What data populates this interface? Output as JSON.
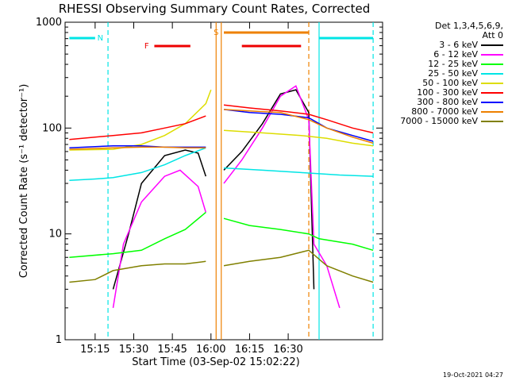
{
  "chart_data": {
    "type": "line",
    "title": "RHESSI Observing Summary Count Rates, Corrected",
    "xlabel": "Start Time (03-Sep-02 15:02:22)",
    "ylabel": "Corrected Count Rate (s⁻¹ detector⁻¹)",
    "yscale": "log",
    "ylim": [
      1,
      1000
    ],
    "xlim_minutes": [
      15.0333,
      16.6667
    ],
    "x_ticks": [
      "15:15",
      "15:30",
      "15:45",
      "16:00",
      "16:15",
      "16:30"
    ],
    "y_ticks": [
      "1",
      "10",
      "100",
      "1000"
    ],
    "legend": {
      "header": [
        "Det 1,3,4,5,6,9,",
        "Att 0"
      ],
      "placement": "right"
    },
    "series": [
      {
        "name": "3 - 6 keV",
        "color": "#000000",
        "points": [
          [
            15.22,
            3
          ],
          [
            15.28,
            10
          ],
          [
            15.33,
            30
          ],
          [
            15.42,
            55
          ],
          [
            15.5,
            62
          ],
          [
            15.55,
            58
          ],
          [
            15.58,
            35
          ],
          [
            16.05,
            40
          ],
          [
            16.12,
            60
          ],
          [
            16.2,
            110
          ],
          [
            16.27,
            210
          ],
          [
            16.33,
            230
          ],
          [
            16.38,
            140
          ],
          [
            16.4,
            3
          ]
        ]
      },
      {
        "name": "6 - 12 keV",
        "color": "#ff00ff",
        "points": [
          [
            15.22,
            2
          ],
          [
            15.26,
            8
          ],
          [
            15.33,
            20
          ],
          [
            15.42,
            35
          ],
          [
            15.48,
            40
          ],
          [
            15.55,
            28
          ],
          [
            15.58,
            16
          ],
          [
            16.05,
            30
          ],
          [
            16.12,
            50
          ],
          [
            16.2,
            100
          ],
          [
            16.27,
            200
          ],
          [
            16.33,
            250
          ],
          [
            16.38,
            120
          ],
          [
            16.4,
            8
          ],
          [
            16.45,
            5
          ],
          [
            16.5,
            2
          ]
        ]
      },
      {
        "name": "12 - 25 keV",
        "color": "#00ff00",
        "points": [
          [
            15.05,
            6
          ],
          [
            15.22,
            6.5
          ],
          [
            15.33,
            7
          ],
          [
            15.42,
            9
          ],
          [
            15.5,
            11
          ],
          [
            15.58,
            16
          ],
          [
            16.05,
            14
          ],
          [
            16.15,
            12
          ],
          [
            16.27,
            11
          ],
          [
            16.38,
            10
          ],
          [
            16.42,
            9
          ],
          [
            16.55,
            8
          ],
          [
            16.63,
            7
          ]
        ]
      },
      {
        "name": "25 - 50 keV",
        "color": "#00e5e5",
        "points": [
          [
            15.05,
            32
          ],
          [
            15.15,
            33
          ],
          [
            15.22,
            34
          ],
          [
            15.33,
            38
          ],
          [
            15.42,
            45
          ],
          [
            15.5,
            55
          ],
          [
            15.58,
            65
          ],
          [
            16.05,
            42
          ],
          [
            16.2,
            40
          ],
          [
            16.35,
            38
          ],
          [
            16.5,
            36
          ],
          [
            16.63,
            35
          ]
        ]
      },
      {
        "name": "50 - 100 keV",
        "color": "#dddd00",
        "points": [
          [
            15.05,
            62
          ],
          [
            15.22,
            63
          ],
          [
            15.33,
            70
          ],
          [
            15.42,
            85
          ],
          [
            15.5,
            110
          ],
          [
            15.58,
            170
          ],
          [
            15.6,
            230
          ],
          [
            16.05,
            95
          ],
          [
            16.2,
            90
          ],
          [
            16.35,
            85
          ],
          [
            16.45,
            80
          ],
          [
            16.55,
            72
          ],
          [
            16.63,
            68
          ]
        ]
      },
      {
        "name": "100 - 300 keV",
        "color": "#ff0000",
        "points": [
          [
            15.05,
            78
          ],
          [
            15.22,
            85
          ],
          [
            15.33,
            90
          ],
          [
            15.42,
            100
          ],
          [
            15.5,
            110
          ],
          [
            15.58,
            130
          ],
          [
            16.05,
            165
          ],
          [
            16.15,
            155
          ],
          [
            16.27,
            145
          ],
          [
            16.38,
            135
          ],
          [
            16.45,
            120
          ],
          [
            16.55,
            100
          ],
          [
            16.63,
            90
          ]
        ]
      },
      {
        "name": "300 - 800 keV",
        "color": "#0000ff",
        "points": [
          [
            15.05,
            65
          ],
          [
            15.22,
            68
          ],
          [
            15.33,
            68
          ],
          [
            15.42,
            66
          ],
          [
            15.5,
            66
          ],
          [
            15.58,
            66
          ],
          [
            16.05,
            150
          ],
          [
            16.15,
            140
          ],
          [
            16.27,
            135
          ],
          [
            16.38,
            125
          ],
          [
            16.45,
            100
          ],
          [
            16.55,
            85
          ],
          [
            16.63,
            75
          ]
        ]
      },
      {
        "name": "800 - 7000 keV",
        "color": "#ee8000",
        "points": [
          [
            15.05,
            63
          ],
          [
            15.22,
            65
          ],
          [
            15.33,
            66
          ],
          [
            15.42,
            66
          ],
          [
            15.5,
            65
          ],
          [
            15.58,
            65
          ],
          [
            16.05,
            150
          ],
          [
            16.15,
            145
          ],
          [
            16.27,
            140
          ],
          [
            16.38,
            120
          ],
          [
            16.45,
            100
          ],
          [
            16.55,
            82
          ],
          [
            16.63,
            72
          ]
        ]
      },
      {
        "name": "7000 - 15000 keV",
        "color": "#808000",
        "points": [
          [
            15.05,
            3.5
          ],
          [
            15.15,
            3.7
          ],
          [
            15.22,
            4.5
          ],
          [
            15.33,
            5
          ],
          [
            15.42,
            5.2
          ],
          [
            15.5,
            5.2
          ],
          [
            15.58,
            5.5
          ],
          [
            16.05,
            5
          ],
          [
            16.15,
            5.5
          ],
          [
            16.27,
            6
          ],
          [
            16.38,
            7
          ],
          [
            16.45,
            5
          ],
          [
            16.55,
            4
          ],
          [
            16.63,
            3.5
          ]
        ]
      }
    ],
    "flag_bars": [
      {
        "label": "",
        "color": "#00e5e5",
        "from": 15.05,
        "to": 15.15
      },
      {
        "label": "",
        "color": "#00e5e5",
        "from": 16.42,
        "to": 16.63
      },
      {
        "label": "",
        "color": "#ee0000",
        "from": 15.38,
        "to": 15.52
      },
      {
        "label": "",
        "color": "#ee0000",
        "from": 16.12,
        "to": 16.35
      },
      {
        "label": "",
        "color": "#ee8000",
        "from": 15.65,
        "to": 15.98
      }
    ],
    "flag_labels": [
      {
        "text": "N",
        "color": "#00e5e5",
        "at": 15.17
      },
      {
        "text": "F",
        "color": "#ee0000",
        "at": 15.35
      },
      {
        "text": "S",
        "color": "#ee8000",
        "at": 15.62
      }
    ],
    "vertical_markers": [
      {
        "color": "#00e5e5",
        "style": "dashed",
        "at": 15.2
      },
      {
        "color": "#ee8000",
        "style": "solid",
        "at": 15.62
      },
      {
        "color": "#ee8000",
        "style": "solid",
        "at": 15.64
      },
      {
        "color": "#ee8000",
        "style": "dashed",
        "at": 15.98
      },
      {
        "color": "#00e5e5",
        "style": "solid",
        "at": 16.42
      },
      {
        "color": "#00e5e5",
        "style": "dashed",
        "at": 16.63
      }
    ]
  },
  "footer": {
    "stamp": "19-Oct-2021 04:27"
  }
}
